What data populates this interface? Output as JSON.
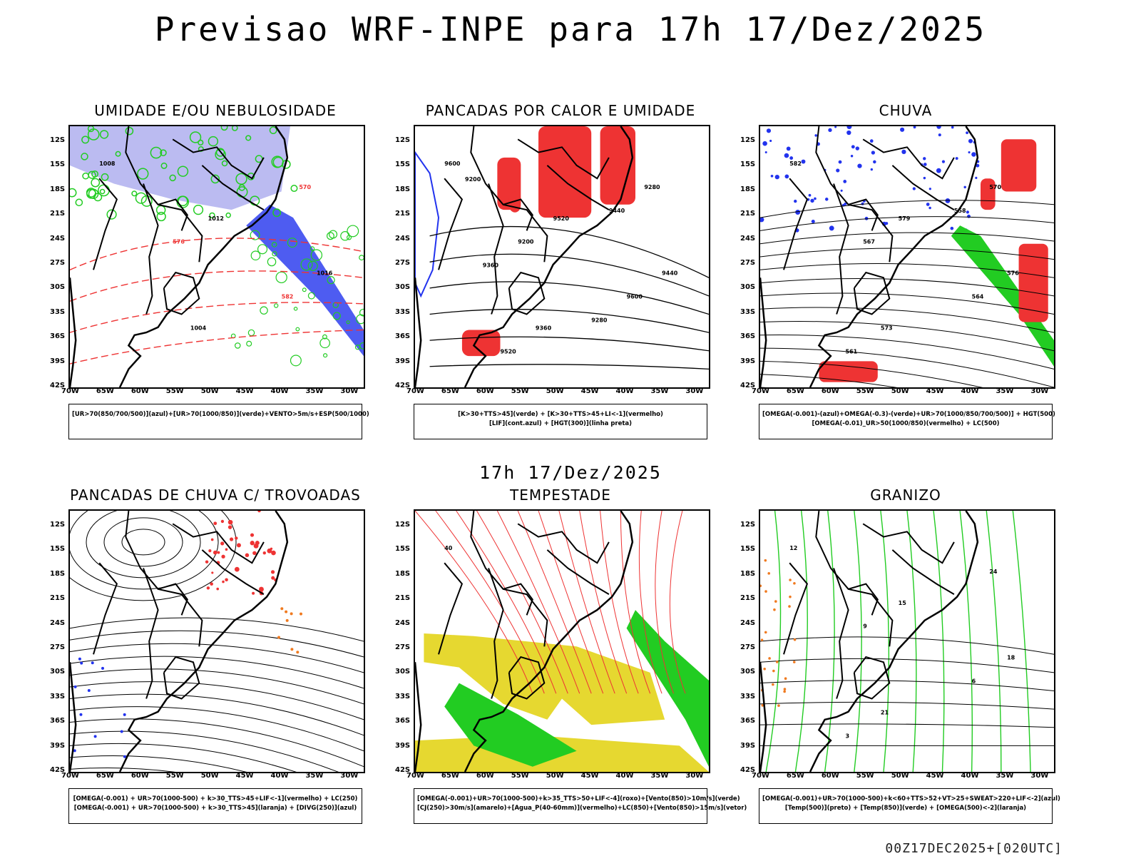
{
  "title": "Previsao WRF-INPE  para 17h 17/Dez/2025",
  "subtitle": "17h 17/Dez/2025",
  "footer": "00Z17DEC2025+[020UTC]",
  "lat_labels": [
    "12S",
    "15S",
    "18S",
    "21S",
    "24S",
    "27S",
    "30S",
    "33S",
    "36S",
    "39S",
    "42S"
  ],
  "lon_labels": [
    "70W",
    "65W",
    "60W",
    "55W",
    "50W",
    "45W",
    "40W",
    "35W",
    "30W"
  ],
  "panels": [
    {
      "title": "UMIDADE E/OU NEBULOSIDADE",
      "legend": [
        "[UR>70(850/700/500)](azul)+[UR>70(1000/850)](verde)+VENTO>5m/s+ESP(500/1000)"
      ],
      "contour_labels": [
        "1008",
        "1012",
        "1016",
        "1004",
        "570",
        "576",
        "582"
      ]
    },
    {
      "title": "PANCADAS POR CALOR E UMIDADE",
      "legend": [
        "[K>30+TTS>45](verde) + [K>30+TTS>45+LI<-1](vermelho)",
        "[LIF](cont.azul) + [HGT(300)](linha preta)"
      ],
      "contour_labels": [
        "9600",
        "9520",
        "9440",
        "9360",
        "9280",
        "9200",
        "9600",
        "9520",
        "9440",
        "9360",
        "9280",
        "9200"
      ]
    },
    {
      "title": "CHUVA",
      "legend": [
        "[OMEGA(-0.001)-(azul)+OMEGA(-0.3)-(verde)+UR>70(1000/850/700/500)] + HGT(500)",
        "[OMEGA(-0.01)_UR>50(1000/850)(vermelho) + LC(500)"
      ],
      "contour_labels": [
        "582",
        "579",
        "576",
        "573",
        "570",
        "567",
        "564",
        "561",
        "558"
      ]
    },
    {
      "title": "PANCADAS DE CHUVA C/ TROVOADAS",
      "legend": [
        "[OMEGA(-0.001) + UR>70(1000-500) + k>30_TTS>45+LIF<-1](vermelho) + LC(250)",
        "[OMEGA(-0.001) + UR>70(1000-500) + k>30_TTS>45](laranja) + [DIVG(250)](azul)"
      ],
      "contour_labels": []
    },
    {
      "title": "TEMPESTADE",
      "legend": [
        "[OMEGA(-0.001)+UR>70(1000-500)+k>35_TTS>50+LIF<-4](roxo)+[Vento(850)>10m/s](verde)",
        "[CJ(250)>30m/s](amarelo)+[Agua_P(40-60mm)](vermelho)+LC(850)+[Vento(850)>15m/s](vetor)"
      ],
      "contour_labels": [
        "40"
      ]
    },
    {
      "title": "GRANIZO",
      "legend": [
        "[OMEGA(-0.001)+UR>70(1000-500)+k<60+TTS>52+VT>25+SWEAT>220+LIF<-2](azul)",
        "[Temp(500)](preto) + [Temp(850)](verde) + [OMEGA(500)<-2](laranja)"
      ],
      "contour_labels": [
        "12",
        "15",
        "18",
        "21",
        "24",
        "9",
        "6",
        "3"
      ]
    }
  ],
  "colors": {
    "red": "#ee3333",
    "blue": "#2233ee",
    "green": "#22cc22",
    "lavender": "#aaaaee",
    "yellow": "#e6d830",
    "orange": "#f07a20",
    "dark_teal": "#2a5a5a"
  }
}
